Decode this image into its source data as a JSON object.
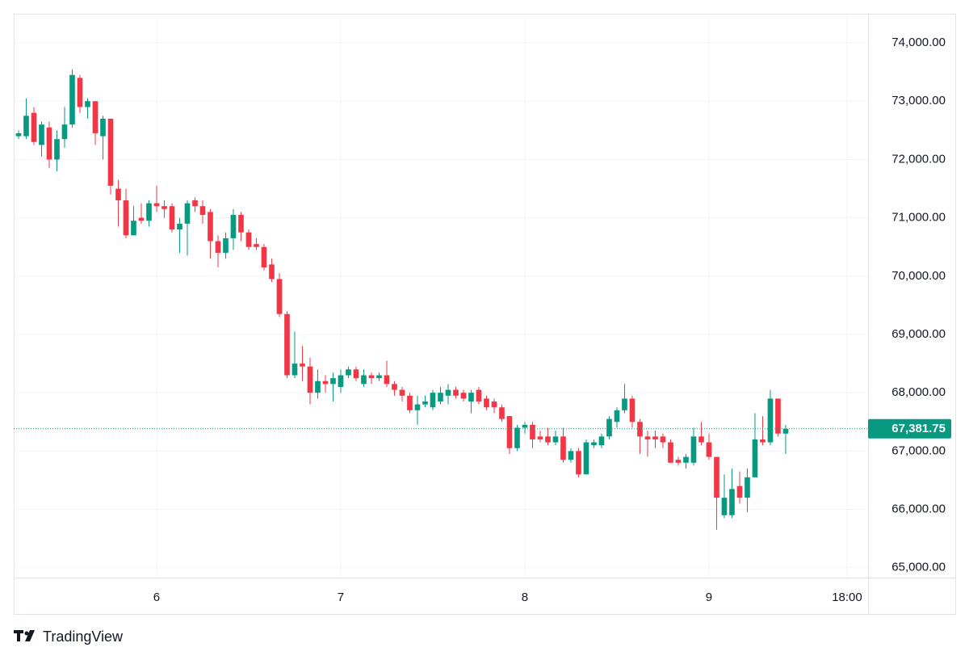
{
  "chart_data": {
    "type": "candlestick",
    "xlim": [
      5.37,
      116.74
    ],
    "xticks": [
      {
        "value": 24,
        "label": "6"
      },
      {
        "value": 48,
        "label": "7"
      },
      {
        "value": 72,
        "label": "8"
      },
      {
        "value": 96,
        "label": "9"
      },
      {
        "value": 114,
        "label": "18:00"
      }
    ],
    "ylim": [
      64830,
      74500
    ],
    "yticks": [
      {
        "value": 65000,
        "label": "65,000.00"
      },
      {
        "value": 66000,
        "label": "66,000.00"
      },
      {
        "value": 67000,
        "label": "67,000.00"
      },
      {
        "value": 68000,
        "label": "68,000.00"
      },
      {
        "value": 69000,
        "label": "69,000.00"
      },
      {
        "value": 70000,
        "label": "70,000.00"
      },
      {
        "value": 71000,
        "label": "71,000.00"
      },
      {
        "value": 72000,
        "label": "72,000.00"
      },
      {
        "value": 73000,
        "label": "73,000.00"
      },
      {
        "value": 74000,
        "label": "74,000.00"
      }
    ],
    "grid": true,
    "up_color": "#089981",
    "down_color": "#f23645",
    "last_price": {
      "value": 67381.75,
      "label": "67,381.75"
    },
    "x": [
      6,
      7,
      8,
      9,
      10,
      11,
      12,
      13,
      14,
      15,
      16,
      17,
      18,
      19,
      20,
      21,
      22,
      23,
      24,
      25,
      26,
      27,
      28,
      29,
      30,
      31,
      32,
      33,
      34,
      35,
      36,
      37,
      38,
      39,
      40,
      41,
      42,
      43,
      44,
      45,
      46,
      47,
      48,
      49,
      50,
      51,
      52,
      53,
      54,
      55,
      56,
      57,
      58,
      59,
      60,
      61,
      62,
      63,
      64,
      65,
      66,
      67,
      68,
      69,
      70,
      71,
      72,
      73,
      74,
      75,
      76,
      77,
      78,
      79,
      80,
      81,
      82,
      83,
      84,
      85,
      86,
      87,
      88,
      89,
      90,
      91,
      92,
      93,
      94,
      95,
      96,
      97,
      98,
      99,
      100,
      101,
      102,
      103,
      104,
      105,
      106
    ],
    "open": [
      72400,
      72400,
      72800,
      72250,
      72550,
      72000,
      72350,
      72600,
      73400,
      72900,
      73000,
      72400,
      72700,
      71500,
      71300,
      70700,
      71000,
      70950,
      71250,
      71200,
      71200,
      70800,
      70900,
      71300,
      71200,
      71100,
      70600,
      70400,
      70650,
      71050,
      70750,
      70550,
      70500,
      70200,
      69950,
      69350,
      68300,
      68500,
      68450,
      68000,
      68200,
      68150,
      68100,
      68300,
      68400,
      68150,
      68300,
      68250,
      68300,
      68150,
      68050,
      67950,
      67700,
      67800,
      67750,
      67850,
      67950,
      68050,
      68000,
      67850,
      68050,
      67900,
      67850,
      67750,
      67600,
      67050,
      67400,
      67450,
      67250,
      67250,
      67150,
      67250,
      66850,
      67000,
      66600,
      67100,
      67100,
      67250,
      67500,
      67700,
      67900,
      67500,
      67250,
      67250,
      67250,
      67150,
      66850,
      66800,
      66800,
      67250,
      67150,
      66900,
      65900,
      65900,
      66400,
      66200,
      66550,
      67200,
      67150,
      67900,
      67300
    ],
    "high": [
      72500,
      73050,
      72900,
      72650,
      72650,
      72500,
      72900,
      73550,
      73450,
      73050,
      73000,
      72750,
      72700,
      71650,
      71500,
      71200,
      71250,
      71300,
      71550,
      71300,
      71250,
      71000,
      71300,
      71350,
      71300,
      71150,
      70700,
      70750,
      71150,
      71100,
      70800,
      70650,
      70550,
      70300,
      70050,
      69400,
      69050,
      68800,
      68600,
      68400,
      68300,
      68350,
      68400,
      68450,
      68450,
      68400,
      68350,
      68350,
      68550,
      68200,
      68100,
      68000,
      67950,
      67950,
      68050,
      68100,
      68150,
      68100,
      68050,
      68050,
      68100,
      67950,
      67900,
      67800,
      67600,
      67450,
      67500,
      67500,
      67350,
      67400,
      67350,
      67400,
      67050,
      67050,
      67200,
      67200,
      67300,
      67600,
      67750,
      68150,
      67950,
      67550,
      67350,
      67350,
      67300,
      67200,
      66900,
      66950,
      67400,
      67500,
      67300,
      66900,
      66600,
      66700,
      66650,
      66700,
      67650,
      67600,
      68050,
      67900,
      67450
    ],
    "low": [
      72350,
      72350,
      72250,
      72050,
      71850,
      71800,
      72200,
      72550,
      72800,
      72700,
      72250,
      72000,
      71400,
      70850,
      70650,
      70700,
      70900,
      70850,
      71100,
      71000,
      70750,
      70400,
      70350,
      71100,
      70900,
      70300,
      70150,
      70300,
      70450,
      70600,
      70450,
      70450,
      70100,
      69900,
      69300,
      68250,
      68250,
      68200,
      67800,
      67900,
      68000,
      67850,
      68000,
      68250,
      68200,
      68100,
      68150,
      68200,
      68100,
      67950,
      67850,
      67650,
      67450,
      67750,
      67700,
      67800,
      67800,
      67900,
      67850,
      67650,
      67800,
      67700,
      67650,
      67500,
      66950,
      67000,
      67300,
      67050,
      67150,
      67100,
      67100,
      66800,
      66800,
      66550,
      66600,
      67050,
      67050,
      67200,
      67400,
      67650,
      67400,
      66950,
      66900,
      67050,
      67050,
      66800,
      66750,
      66700,
      66750,
      67100,
      66850,
      65650,
      65850,
      65850,
      66100,
      65950,
      66550,
      67100,
      67100,
      67250,
      66950
    ],
    "close": [
      72450,
      72750,
      72300,
      72600,
      72000,
      72350,
      72600,
      73450,
      72900,
      73000,
      72450,
      72700,
      71550,
      71300,
      70700,
      70950,
      70950,
      71250,
      71200,
      71150,
      70800,
      70900,
      71250,
      71200,
      71050,
      70600,
      70400,
      70650,
      71050,
      70750,
      70500,
      70500,
      70150,
      69950,
      69350,
      68300,
      68500,
      68450,
      68000,
      68200,
      68150,
      68250,
      68300,
      68400,
      68250,
      68300,
      68250,
      68300,
      68150,
      68050,
      67950,
      67700,
      67800,
      67850,
      68000,
      68000,
      68050,
      67950,
      67900,
      68000,
      67850,
      67750,
      67750,
      67550,
      67050,
      67400,
      67450,
      67200,
      67200,
      67150,
      67250,
      66850,
      67000,
      66600,
      67150,
      67150,
      67250,
      67550,
      67700,
      67900,
      67500,
      67250,
      67200,
      67200,
      67150,
      66800,
      66800,
      66900,
      67250,
      67150,
      66900,
      66200,
      66200,
      66350,
      66200,
      66550,
      67200,
      67150,
      67900,
      67300,
      67381.75
    ]
  },
  "watermark": "TradingView"
}
